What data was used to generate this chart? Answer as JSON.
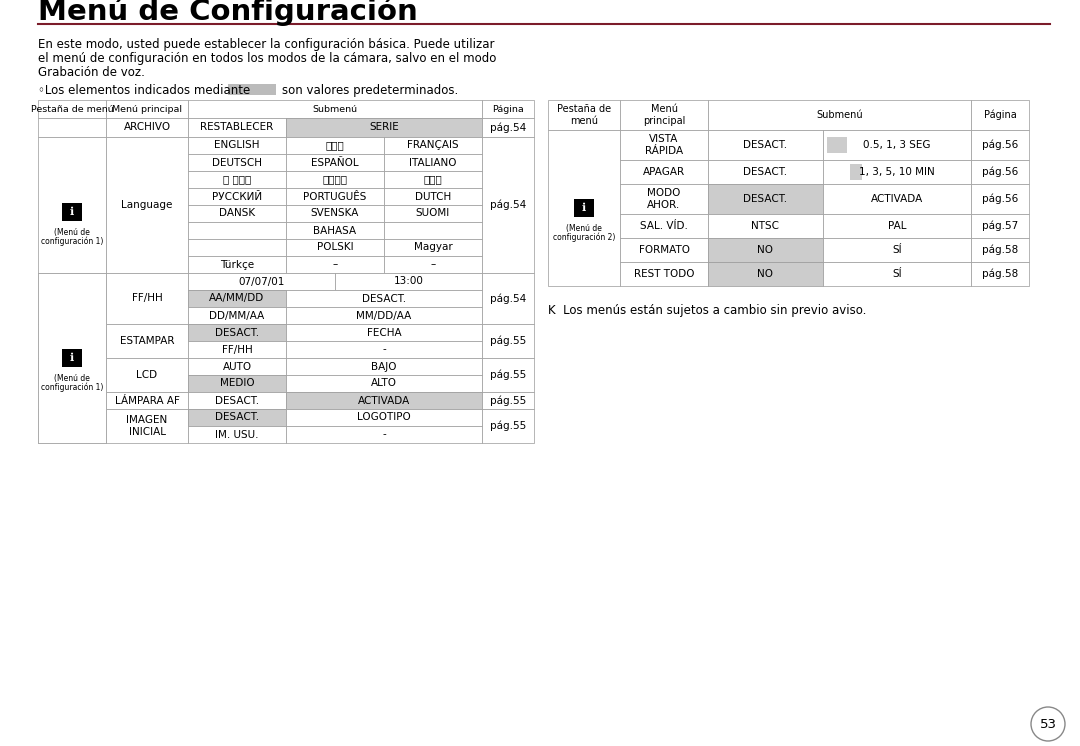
{
  "title": "Menú de Configuración",
  "title_line_color": "#7B1C2A",
  "background_color": "#ffffff",
  "intro_line1": "En este modo, usted puede establecer la configuración básica. Puede utilizar",
  "intro_line2": "el menú de configuración en todos los modos de la cámara, salvo en el modo",
  "intro_line3": "Grabación de voz.",
  "default_note_pre": "◦Los elementos indicados mediante",
  "default_note_post": "son valores predeterminados.",
  "gray_color": "#bbbbbb",
  "light_gray": "#cccccc",
  "border_color": "#999999",
  "note_bottom": "K  Los menús están sujetos a cambio sin previo aviso.",
  "page_number": "53"
}
